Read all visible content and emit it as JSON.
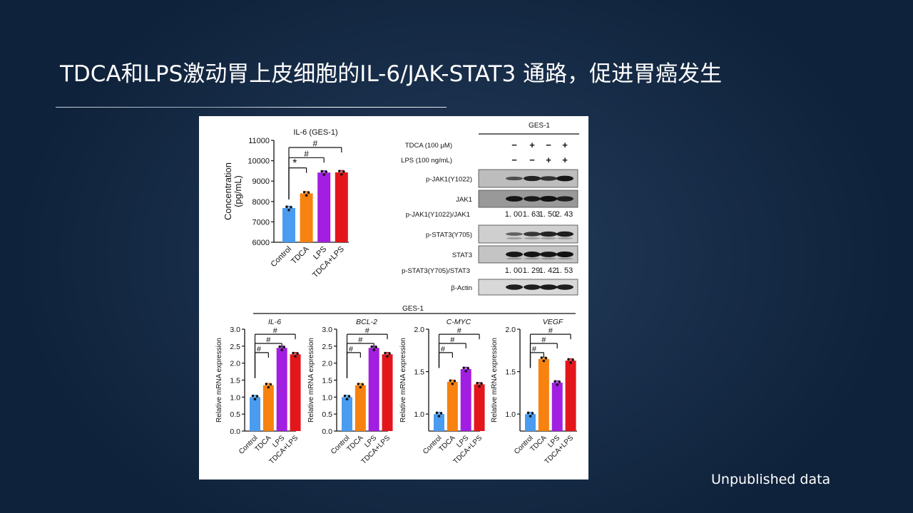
{
  "slide": {
    "title": "TDCA和LPS激动胃上皮细胞的IL-6/JAK-STAT3 通路，促进胃癌发生",
    "footnote": "Unpublished data",
    "background_color": "#102440"
  },
  "colors": {
    "Control": "#4a9cf0",
    "TDCA": "#f7820f",
    "LPS": "#a21ee0",
    "TDCA+LPS": "#e3161c"
  },
  "western_blot": {
    "header": "GES-1",
    "treatments": [
      {
        "label": "TDCA (100 μM)",
        "values": [
          "−",
          "+",
          "−",
          "+"
        ]
      },
      {
        "label": "LPS (100 ng/mL)",
        "values": [
          "−",
          "−",
          "+",
          "+"
        ]
      }
    ],
    "bands": [
      {
        "label": "p-JAK1(Y1022)"
      },
      {
        "label": "JAK1"
      },
      {
        "label": "p-JAK1(Y1022)/JAK1",
        "ratios": [
          "1. 00",
          "1. 63",
          "1. 50",
          "2. 43"
        ]
      },
      {
        "label": "p-STAT3(Y705)"
      },
      {
        "label": "STAT3"
      },
      {
        "label": "p-STAT3(Y705)/STAT3",
        "ratios": [
          "1. 00",
          "1. 29",
          "1. 42",
          "1. 53"
        ]
      },
      {
        "label": "β-Actin"
      }
    ]
  },
  "chart_data": [
    {
      "type": "bar",
      "title": "IL-6 (GES-1)",
      "categories": [
        "Control",
        "TDCA",
        "LPS",
        "TDCA+LPS"
      ],
      "values": [
        7680,
        8400,
        9420,
        9430
      ],
      "ylabel": "Concentration (pg/mL)",
      "ylim": [
        6000,
        11000
      ],
      "yticks": [
        6000,
        7000,
        8000,
        9000,
        10000,
        11000
      ],
      "significance": [
        {
          "from": "Control",
          "to": "TDCA",
          "mark": "*"
        },
        {
          "from": "Control",
          "to": "LPS",
          "mark": "#"
        },
        {
          "from": "Control",
          "to": "TDCA+LPS",
          "mark": "#"
        }
      ]
    },
    {
      "type": "bar",
      "group_label": "GES-1",
      "title": "IL-6",
      "categories": [
        "Control",
        "TDCA",
        "LPS",
        "TDCA+LPS"
      ],
      "values": [
        1.0,
        1.35,
        2.45,
        2.26
      ],
      "ylabel": "Relative mRNA expression",
      "ylim": [
        0,
        3.0
      ],
      "yticks": [
        "0.0",
        "0.5",
        "1.0",
        "1.5",
        "2.0",
        "2.5",
        "3.0"
      ],
      "significance": [
        {
          "from": "Control",
          "to": "TDCA",
          "mark": "#"
        },
        {
          "from": "Control",
          "to": "LPS",
          "mark": "#"
        },
        {
          "from": "Control",
          "to": "TDCA+LPS",
          "mark": "#"
        }
      ]
    },
    {
      "type": "bar",
      "group_label": "GES-1",
      "title": "BCL-2",
      "categories": [
        "Control",
        "TDCA",
        "LPS",
        "TDCA+LPS"
      ],
      "values": [
        1.0,
        1.35,
        2.45,
        2.26
      ],
      "ylabel": "Relative mRNA expression",
      "ylim": [
        0,
        3.0
      ],
      "yticks": [
        "0.0",
        "0.5",
        "1.0",
        "1.5",
        "2.0",
        "2.5",
        "3.0"
      ],
      "significance": [
        {
          "from": "Control",
          "to": "TDCA",
          "mark": "#"
        },
        {
          "from": "Control",
          "to": "LPS",
          "mark": "#"
        },
        {
          "from": "Control",
          "to": "TDCA+LPS",
          "mark": "#"
        }
      ]
    },
    {
      "type": "bar",
      "group_label": "GES-1",
      "title": "C-MYC",
      "categories": [
        "Control",
        "TDCA",
        "LPS",
        "TDCA+LPS"
      ],
      "values": [
        1.0,
        1.38,
        1.53,
        1.35
      ],
      "ylabel": "Relative mRNA expression",
      "ylim": [
        0.8,
        2.0
      ],
      "yticks": [
        "1.0",
        "1.5",
        "2.0"
      ],
      "significance": [
        {
          "from": "Control",
          "to": "TDCA",
          "mark": "#"
        },
        {
          "from": "Control",
          "to": "LPS",
          "mark": "#"
        },
        {
          "from": "Control",
          "to": "TDCA+LPS",
          "mark": "#"
        }
      ]
    },
    {
      "type": "bar",
      "group_label": "GES-1",
      "title": "VEGF",
      "categories": [
        "Control",
        "TDCA",
        "LPS",
        "TDCA+LPS"
      ],
      "values": [
        1.0,
        1.65,
        1.37,
        1.63
      ],
      "ylabel": "Relative mRNA expression",
      "ylim": [
        0.8,
        2.0
      ],
      "yticks": [
        "1.0",
        "1.5",
        "2.0"
      ],
      "significance": [
        {
          "from": "Control",
          "to": "TDCA",
          "mark": "#"
        },
        {
          "from": "Control",
          "to": "LPS",
          "mark": "#"
        },
        {
          "from": "Control",
          "to": "TDCA+LPS",
          "mark": "#"
        }
      ]
    }
  ]
}
